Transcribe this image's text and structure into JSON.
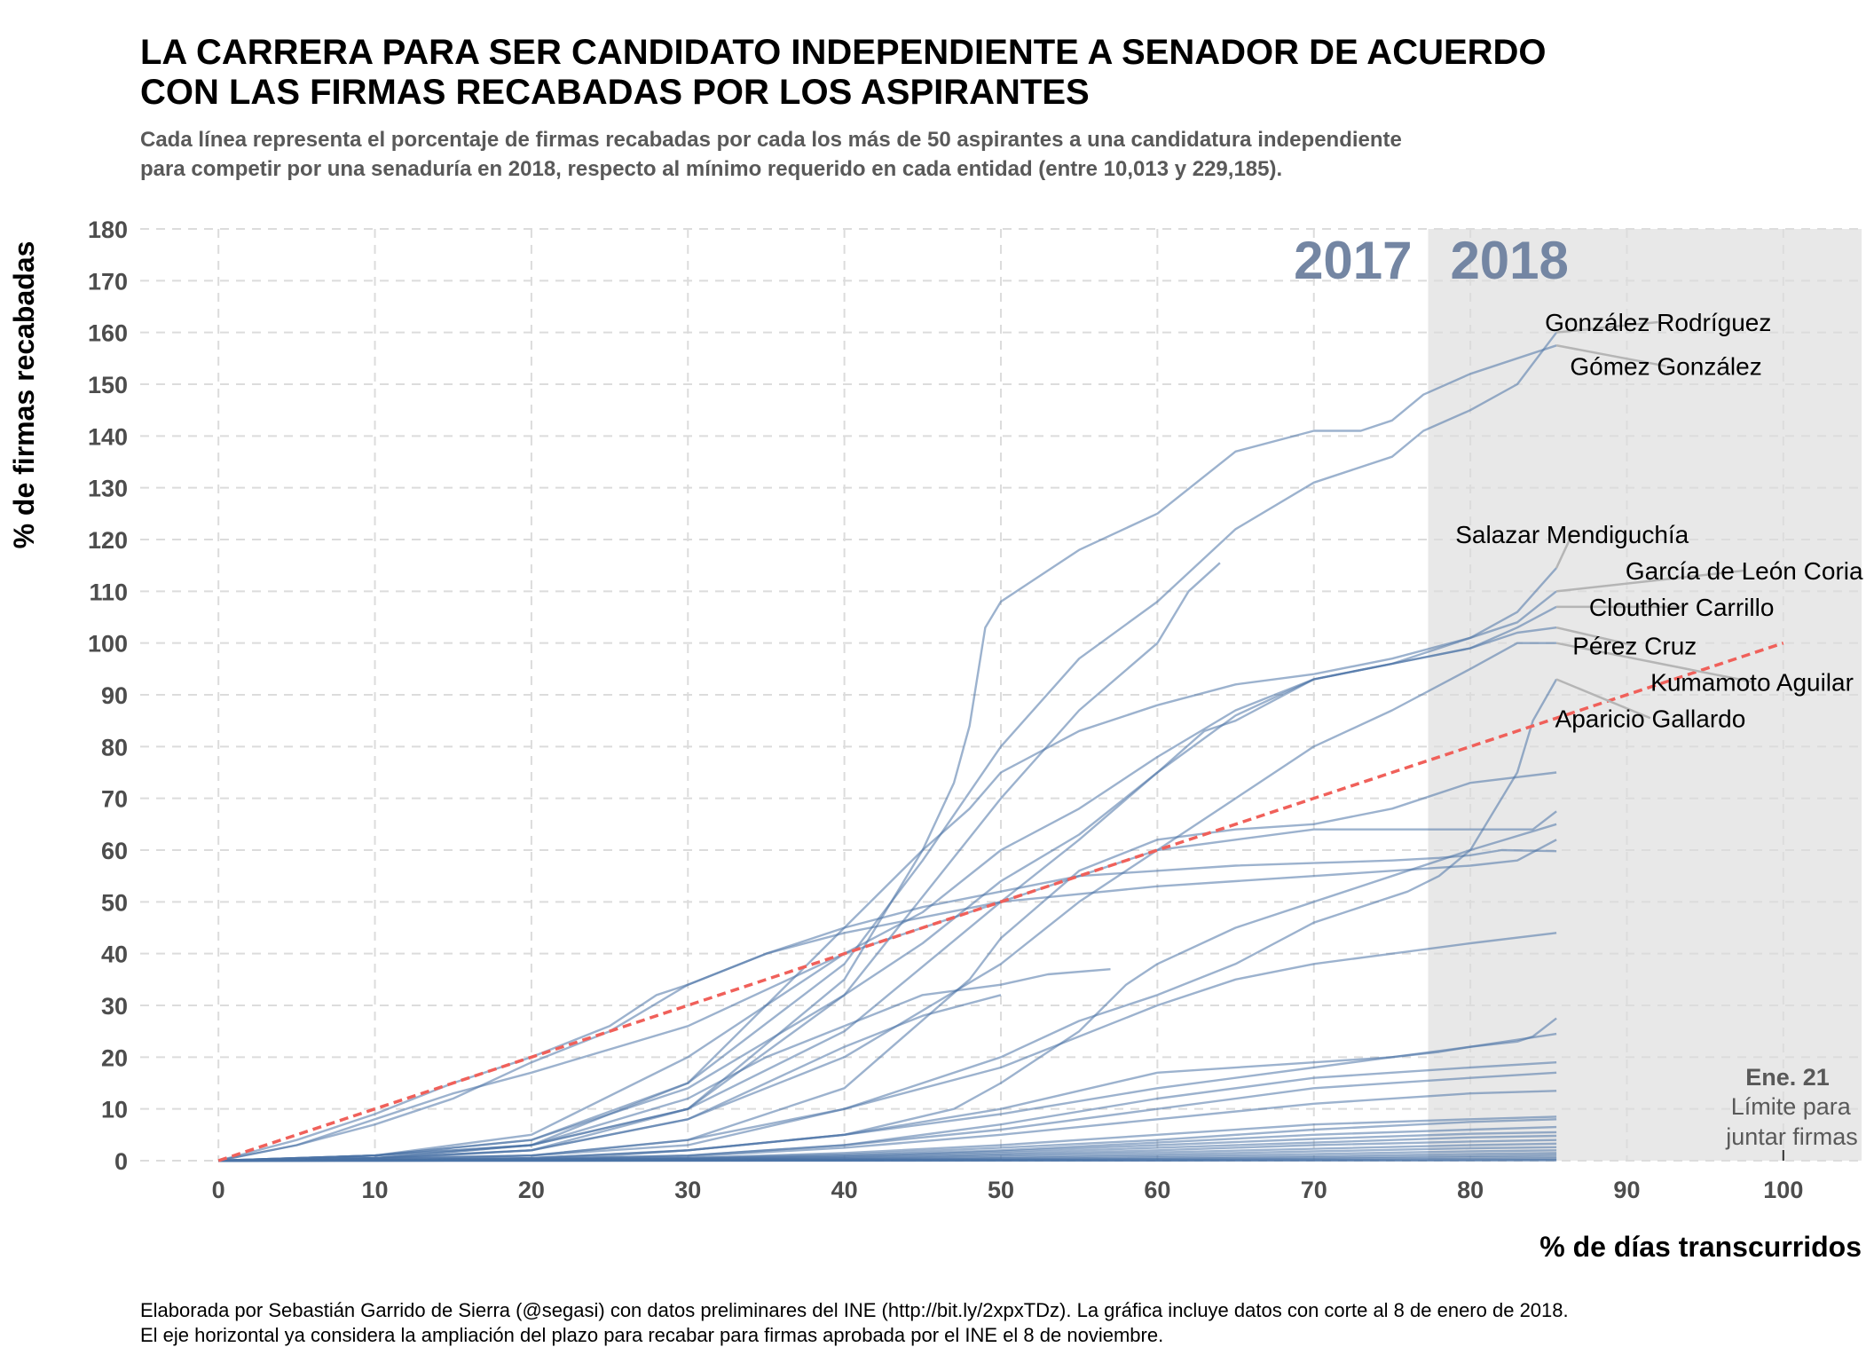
{
  "title_line1": "LA CARRERA PARA SER CANDIDATO INDEPENDIENTE A SENADOR DE ACUERDO",
  "title_line2": "CON LAS FIRMAS RECABADAS POR LOS ASPIRANTES",
  "subtitle_line1": "Cada línea representa el porcentaje de firmas recabadas por cada los más de 50 aspirantes a una candidatura independiente",
  "subtitle_line2": "para competir por una senaduría en 2018, respecto al mínimo requerido en cada entidad (entre 10,013 y 229,185).",
  "caption_line1": "Elaborada por Sebastián Garrido de Sierra (@segasi) con datos preliminares del INE (http://bit.ly/2xpxTDz). La gráfica incluye datos con corte al 8 de enero de 2018.",
  "caption_line2": "El eje horizontal ya considera la ampliación del plazo para recabar para firmas aprobada por el INE el 8 de noviembre.",
  "colors": {
    "line": "#4a72a6",
    "reference": "#f0605a",
    "shade": "#e8e8e8",
    "grid": "#dcdcdc",
    "year_label": "#7486a3",
    "leader": "#b5b5b5"
  },
  "chart_data": {
    "type": "line",
    "xlabel": "% de días transcurridos",
    "ylabel": "% de firmas recabadas",
    "xlim": [
      -5,
      105
    ],
    "ylim": [
      0,
      180
    ],
    "xticks": [
      0,
      10,
      20,
      30,
      40,
      50,
      60,
      70,
      80,
      90,
      100
    ],
    "yticks": [
      0,
      10,
      20,
      30,
      40,
      50,
      60,
      70,
      80,
      90,
      100,
      110,
      120,
      130,
      140,
      150,
      160,
      170,
      180
    ],
    "grid": true,
    "shaded_region": {
      "x_start": 77.3,
      "x_end": 105,
      "label": "2018"
    },
    "year_labels": [
      {
        "text": "2017",
        "x": 72.5,
        "y": 174
      },
      {
        "text": "2018",
        "x": 82.5,
        "y": 174
      }
    ],
    "reference_line": {
      "x": [
        0,
        100
      ],
      "y": [
        0,
        100
      ],
      "style": "dashed"
    },
    "deadline_note": {
      "x": 100,
      "bold": "Ene. 21",
      "line1": "Límite para",
      "line2": "juntar firmas"
    },
    "highlight_labels": [
      {
        "text": "González Rodríguez",
        "tx": 92,
        "ty": 162,
        "anchor_x": 85.5,
        "anchor_y": 160
      },
      {
        "text": "Gómez González",
        "tx": 92.5,
        "ty": 153.5,
        "anchor_x": 85.5,
        "anchor_y": 157.5
      },
      {
        "text": "Salazar Mendiguchía",
        "tx": 86.5,
        "ty": 121,
        "anchor_x": 85.5,
        "anchor_y": 114.5
      },
      {
        "text": "García de León Coria",
        "tx": 97.5,
        "ty": 114,
        "anchor_x": 85.5,
        "anchor_y": 110
      },
      {
        "text": "Clouthier Carrillo",
        "tx": 93.5,
        "ty": 107,
        "anchor_x": 85.5,
        "anchor_y": 107
      },
      {
        "text": "Pérez Cruz",
        "tx": 90.5,
        "ty": 99.5,
        "anchor_x": 85.5,
        "anchor_y": 103
      },
      {
        "text": "Kumamoto Aguilar",
        "tx": 98,
        "ty": 92.5,
        "anchor_x": 85.5,
        "anchor_y": 100
      },
      {
        "text": "Aparicio Gallardo",
        "tx": 91.5,
        "ty": 85.5,
        "anchor_x": 85.5,
        "anchor_y": 93
      }
    ],
    "series": [
      {
        "x": [
          0,
          10,
          20,
          30,
          40,
          45,
          47,
          48,
          49,
          50,
          55,
          60,
          65,
          70,
          73,
          75,
          77,
          80,
          83,
          85.5
        ],
        "values": [
          0,
          1,
          3,
          10,
          35,
          60,
          73,
          84,
          103,
          108,
          118,
          125,
          137,
          141,
          141,
          143,
          148,
          152,
          155,
          157.5
        ]
      },
      {
        "x": [
          0,
          10,
          20,
          30,
          40,
          45,
          50,
          55,
          60,
          65,
          70,
          75,
          77,
          80,
          83,
          85.5
        ],
        "values": [
          0,
          1,
          4,
          15,
          38,
          58,
          80,
          97,
          108,
          122,
          131,
          136,
          141,
          145,
          150,
          160
        ]
      },
      {
        "x": [
          0,
          10,
          20,
          30,
          40,
          50,
          55,
          60,
          62,
          64
        ],
        "values": [
          0,
          0.5,
          2,
          10,
          32,
          70,
          87,
          100,
          110,
          115.5
        ]
      },
      {
        "x": [
          0,
          10,
          20,
          30,
          35,
          40,
          45,
          48,
          50,
          55,
          60,
          65,
          70,
          75,
          80,
          83,
          85.5
        ],
        "values": [
          0,
          0.5,
          3,
          15,
          30,
          45,
          60,
          68,
          75,
          83,
          88,
          92,
          94,
          97,
          101,
          106,
          114.5
        ]
      },
      {
        "x": [
          0,
          10,
          20,
          30,
          40,
          45,
          50,
          55,
          60,
          65,
          70,
          75,
          80,
          83,
          85.5
        ],
        "values": [
          0,
          1,
          5,
          20,
          40,
          48,
          60,
          68,
          78,
          87,
          93,
          96,
          101,
          104,
          110
        ]
      },
      {
        "x": [
          0,
          10,
          20,
          30,
          40,
          45,
          50,
          55,
          60,
          65,
          70,
          75,
          80,
          83,
          85.5
        ],
        "values": [
          0,
          1,
          4,
          14,
          32,
          42,
          54,
          63,
          75,
          86,
          93,
          96,
          99,
          103,
          107
        ]
      },
      {
        "x": [
          0,
          10,
          20,
          30,
          40,
          50,
          55,
          60,
          63,
          65,
          70,
          75,
          80,
          83,
          85.5
        ],
        "values": [
          0,
          1,
          3,
          10,
          25,
          50,
          62,
          75,
          83,
          85,
          93,
          96,
          99,
          102,
          103
        ]
      },
      {
        "x": [
          0,
          10,
          20,
          30,
          40,
          50,
          55,
          60,
          65,
          70,
          75,
          80,
          83,
          85.5
        ],
        "values": [
          0,
          0.5,
          2,
          8,
          20,
          38,
          50,
          60,
          70,
          80,
          87,
          95,
          100,
          100
        ]
      },
      {
        "x": [
          0,
          10,
          20,
          30,
          40,
          50,
          55,
          60,
          65,
          70,
          72,
          74,
          76,
          78,
          80,
          83,
          84,
          85.5
        ],
        "values": [
          0,
          0.3,
          1,
          3,
          10,
          20,
          27,
          32,
          38,
          46,
          48,
          50,
          52,
          55,
          60,
          75,
          85,
          93
        ]
      },
      {
        "x": [
          0,
          5,
          10,
          15,
          20,
          30,
          40,
          50,
          55,
          58,
          60,
          65,
          70,
          75,
          80,
          82,
          84,
          85.5
        ],
        "values": [
          0,
          3,
          8,
          13,
          17,
          26,
          40,
          50,
          55,
          58,
          60,
          62,
          64,
          64,
          64,
          64,
          64,
          67.5
        ]
      },
      {
        "x": [
          0,
          5,
          10,
          15,
          20,
          25,
          28,
          30,
          35,
          40,
          45,
          50,
          60,
          65,
          70,
          75,
          80,
          83,
          85.5
        ],
        "values": [
          0,
          4,
          9,
          15,
          20,
          26,
          32,
          34,
          40,
          44,
          47,
          50,
          53,
          54,
          55,
          56,
          57,
          58,
          62
        ]
      },
      {
        "x": [
          0,
          5,
          10,
          15,
          20,
          25,
          30,
          35,
          40,
          45,
          50,
          55,
          60,
          65,
          70,
          75,
          78,
          80,
          82,
          85.5
        ],
        "values": [
          0,
          3,
          7,
          12,
          19,
          25,
          34,
          40,
          45,
          49,
          52,
          55,
          56,
          57,
          57.5,
          58,
          58.5,
          59,
          60,
          59.8
        ]
      },
      {
        "x": [
          0,
          10,
          20,
          30,
          40,
          48,
          50,
          55,
          60,
          65,
          70,
          75,
          77,
          80,
          85.5
        ],
        "values": [
          0,
          0.5,
          1,
          4,
          14,
          35,
          43,
          56,
          62,
          64,
          65,
          68,
          70,
          73,
          75
        ]
      },
      {
        "x": [
          0,
          10,
          20,
          30,
          35,
          40,
          45,
          50,
          53,
          57
        ],
        "values": [
          0,
          0.5,
          3,
          12,
          20,
          26,
          32,
          34,
          36,
          37
        ]
      },
      {
        "x": [
          0,
          10,
          20,
          30,
          35,
          40,
          45,
          50
        ],
        "values": [
          0,
          0.3,
          2,
          8,
          15,
          22,
          28,
          32
        ]
      },
      {
        "x": [
          0,
          10,
          20,
          25,
          30,
          40,
          47,
          50,
          55,
          58,
          60,
          65,
          70,
          75,
          80,
          85.5
        ],
        "values": [
          0,
          0.1,
          0.5,
          1,
          2,
          5,
          10,
          15,
          25,
          34,
          38,
          45,
          50,
          55,
          60,
          65
        ]
      },
      {
        "x": [
          0,
          10,
          20,
          30,
          40,
          50,
          60,
          65,
          70,
          75,
          80,
          85.5
        ],
        "values": [
          0,
          0.2,
          1,
          4,
          10,
          18,
          30,
          35,
          38,
          40,
          42,
          44
        ]
      },
      {
        "x": [
          0,
          10,
          20,
          30,
          40,
          50,
          60,
          70,
          75,
          78,
          80,
          83,
          84,
          85.5
        ],
        "values": [
          0,
          0.1,
          0.5,
          2,
          5,
          10,
          17,
          19,
          20,
          21,
          22,
          23,
          24,
          27.5
        ]
      },
      {
        "x": [
          0,
          10,
          20,
          30,
          40,
          50,
          60,
          70,
          75,
          80,
          85.5
        ],
        "values": [
          0,
          0.1,
          0.5,
          2,
          5,
          9,
          14,
          18,
          20,
          22,
          24.5
        ]
      },
      {
        "x": [
          0,
          10,
          20,
          30,
          40,
          50,
          60,
          70,
          75,
          80,
          85.5
        ],
        "values": [
          0,
          0.1,
          0.3,
          1,
          3,
          7,
          12,
          16,
          17,
          18,
          19
        ]
      },
      {
        "x": [
          0,
          10,
          20,
          30,
          40,
          50,
          60,
          70,
          80,
          85.5
        ],
        "values": [
          0,
          0.1,
          0.3,
          1,
          3,
          6,
          10,
          14,
          16,
          17
        ]
      },
      {
        "x": [
          0,
          10,
          20,
          30,
          40,
          50,
          60,
          70,
          80,
          85.5
        ],
        "values": [
          0,
          0.1,
          0.2,
          0.8,
          2.5,
          5,
          8,
          11,
          13,
          13.5
        ]
      },
      {
        "x": [
          0,
          10,
          20,
          30,
          40,
          50,
          60,
          70,
          80,
          85.5
        ],
        "values": [
          0,
          0.1,
          0.2,
          0.5,
          1.5,
          3,
          5,
          7,
          8,
          8.5
        ]
      },
      {
        "x": [
          0,
          10,
          20,
          30,
          40,
          50,
          60,
          70,
          80,
          85.5
        ],
        "values": [
          0,
          0.1,
          0.2,
          0.5,
          1.2,
          2.5,
          4,
          6,
          7.5,
          8
        ]
      },
      {
        "x": [
          0,
          10,
          20,
          30,
          40,
          50,
          60,
          70,
          80,
          85.5
        ],
        "values": [
          0,
          0.1,
          0.2,
          0.4,
          1,
          2,
          3.5,
          5,
          6,
          6.5
        ]
      },
      {
        "x": [
          0,
          10,
          20,
          30,
          40,
          50,
          60,
          70,
          80,
          85.5
        ],
        "values": [
          0,
          0.1,
          0.1,
          0.3,
          0.8,
          1.8,
          3,
          4.2,
          5.2,
          5.5
        ]
      },
      {
        "x": [
          0,
          10,
          20,
          30,
          40,
          50,
          60,
          70,
          80,
          85.5
        ],
        "values": [
          0,
          0.05,
          0.1,
          0.3,
          0.7,
          1.5,
          2.5,
          3.5,
          4.5,
          4.8
        ]
      },
      {
        "x": [
          0,
          10,
          20,
          30,
          40,
          50,
          60,
          70,
          80,
          85.5
        ],
        "values": [
          0,
          0.05,
          0.1,
          0.2,
          0.5,
          1.2,
          2,
          3,
          3.7,
          4
        ]
      },
      {
        "x": [
          0,
          10,
          20,
          30,
          40,
          50,
          60,
          70,
          80,
          85.5
        ],
        "values": [
          0,
          0.05,
          0.1,
          0.2,
          0.4,
          1,
          1.6,
          2.3,
          3,
          3.3
        ]
      },
      {
        "x": [
          0,
          10,
          20,
          30,
          40,
          50,
          60,
          70,
          80,
          85.5
        ],
        "values": [
          0,
          0.05,
          0.1,
          0.15,
          0.3,
          0.7,
          1.2,
          1.8,
          2.4,
          2.6
        ]
      },
      {
        "x": [
          0,
          10,
          20,
          30,
          40,
          50,
          60,
          70,
          80,
          85.5
        ],
        "values": [
          0,
          0.02,
          0.05,
          0.1,
          0.2,
          0.5,
          0.9,
          1.3,
          1.8,
          2
        ]
      },
      {
        "x": [
          0,
          10,
          20,
          30,
          40,
          50,
          60,
          70,
          80,
          85.5
        ],
        "values": [
          0,
          0.02,
          0.05,
          0.1,
          0.15,
          0.35,
          0.6,
          0.9,
          1.3,
          1.5
        ]
      },
      {
        "x": [
          0,
          10,
          20,
          30,
          40,
          50,
          60,
          70,
          80,
          85.5
        ],
        "values": [
          0,
          0.02,
          0.03,
          0.06,
          0.1,
          0.2,
          0.4,
          0.6,
          0.9,
          1.1
        ]
      },
      {
        "x": [
          0,
          10,
          20,
          30,
          40,
          50,
          60,
          70,
          80,
          85.5
        ],
        "values": [
          0,
          0.01,
          0.02,
          0.04,
          0.08,
          0.15,
          0.25,
          0.4,
          0.6,
          0.7
        ]
      },
      {
        "x": [
          0,
          10,
          20,
          30,
          40,
          50,
          60,
          70,
          80,
          85.5
        ],
        "values": [
          0,
          0.01,
          0.01,
          0.02,
          0.04,
          0.08,
          0.12,
          0.2,
          0.3,
          0.4
        ]
      },
      {
        "x": [
          0,
          20,
          40,
          60,
          80,
          85.5
        ],
        "values": [
          0,
          0.01,
          0.02,
          0.04,
          0.1,
          0.15
        ]
      },
      {
        "x": [
          0,
          20,
          40,
          60,
          80,
          85.5
        ],
        "values": [
          0,
          0,
          0.01,
          0.02,
          0.05,
          0.05
        ]
      }
    ]
  }
}
